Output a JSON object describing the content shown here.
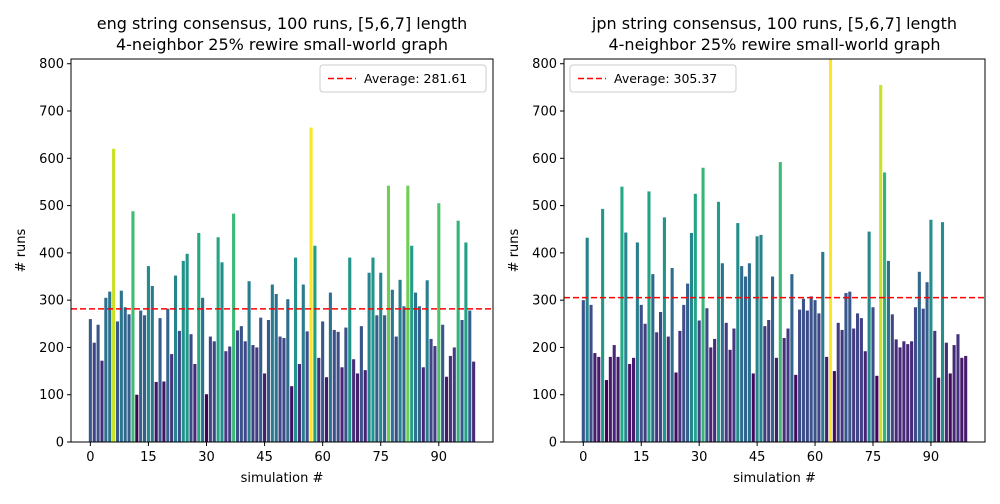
{
  "chart_data": [
    {
      "type": "bar",
      "title": "eng string consensus, 100 runs, [5,6,7] length",
      "subtitle": "4-neighbor 25% rewire small-world graph",
      "xlabel": "simulation #",
      "ylabel": "# runs",
      "xlim": [
        -5,
        104
      ],
      "ylim": [
        0,
        810
      ],
      "xticks": [
        0,
        15,
        30,
        45,
        60,
        75,
        90
      ],
      "yticks": [
        0,
        100,
        200,
        300,
        400,
        500,
        600,
        700,
        800
      ],
      "average": {
        "label": "Average: 281.61",
        "value": 281.61,
        "color": "#ff0000"
      },
      "legend_position": "upper-right",
      "color_scale": {
        "name": "viridis",
        "min": 100,
        "max": 665
      },
      "x": [
        0,
        1,
        2,
        3,
        4,
        5,
        6,
        7,
        8,
        9,
        10,
        11,
        12,
        13,
        14,
        15,
        16,
        17,
        18,
        19,
        20,
        21,
        22,
        23,
        24,
        25,
        26,
        27,
        28,
        29,
        30,
        31,
        32,
        33,
        34,
        35,
        36,
        37,
        38,
        39,
        40,
        41,
        42,
        43,
        44,
        45,
        46,
        47,
        48,
        49,
        50,
        51,
        52,
        53,
        54,
        55,
        56,
        57,
        58,
        59,
        60,
        61,
        62,
        63,
        64,
        65,
        66,
        67,
        68,
        69,
        70,
        71,
        72,
        73,
        74,
        75,
        76,
        77,
        78,
        79,
        80,
        81,
        82,
        83,
        84,
        85,
        86,
        87,
        88,
        89,
        90,
        91,
        92,
        93,
        94,
        95,
        96,
        97,
        98,
        99
      ],
      "values": [
        260,
        210,
        248,
        172,
        305,
        318,
        620,
        255,
        320,
        285,
        270,
        488,
        100,
        278,
        268,
        372,
        330,
        127,
        262,
        128,
        282,
        186,
        352,
        235,
        383,
        398,
        228,
        165,
        442,
        305,
        101,
        223,
        213,
        433,
        380,
        192,
        202,
        483,
        236,
        245,
        213,
        340,
        205,
        200,
        263,
        145,
        258,
        333,
        313,
        223,
        220,
        302,
        118,
        390,
        165,
        333,
        234,
        665,
        415,
        178,
        255,
        137,
        316,
        237,
        233,
        158,
        242,
        390,
        175,
        145,
        245,
        152,
        358,
        390,
        268,
        358,
        268,
        542,
        322,
        223,
        343,
        287,
        542,
        415,
        316,
        287,
        158,
        342,
        218,
        203,
        505,
        248,
        138,
        182,
        200,
        468,
        258,
        422,
        278,
        170
      ]
    },
    {
      "type": "bar",
      "title": "jpn string consensus, 100 runs, [5,6,7] length",
      "subtitle": "4-neighbor 25% rewire small-world graph",
      "xlabel": "simulation #",
      "ylabel": "# runs",
      "xlim": [
        -5,
        104
      ],
      "ylim": [
        0,
        810
      ],
      "xticks": [
        0,
        15,
        30,
        45,
        60,
        75,
        90
      ],
      "yticks": [
        0,
        100,
        200,
        300,
        400,
        500,
        600,
        700,
        800
      ],
      "average": {
        "label": "Average: 305.37",
        "value": 305.37,
        "color": "#ff0000"
      },
      "legend_position": "upper-left",
      "color_scale": {
        "name": "viridis",
        "min": 130,
        "max": 810
      },
      "x": [
        0,
        1,
        2,
        3,
        4,
        5,
        6,
        7,
        8,
        9,
        10,
        11,
        12,
        13,
        14,
        15,
        16,
        17,
        18,
        19,
        20,
        21,
        22,
        23,
        24,
        25,
        26,
        27,
        28,
        29,
        30,
        31,
        32,
        33,
        34,
        35,
        36,
        37,
        38,
        39,
        40,
        41,
        42,
        43,
        44,
        45,
        46,
        47,
        48,
        49,
        50,
        51,
        52,
        53,
        54,
        55,
        56,
        57,
        58,
        59,
        60,
        61,
        62,
        63,
        64,
        65,
        66,
        67,
        68,
        69,
        70,
        71,
        72,
        73,
        74,
        75,
        76,
        77,
        78,
        79,
        80,
        81,
        82,
        83,
        84,
        85,
        86,
        87,
        88,
        89,
        90,
        91,
        92,
        93,
        94,
        95,
        96,
        97,
        98,
        99
      ],
      "values": [
        300,
        432,
        290,
        188,
        180,
        493,
        131,
        180,
        205,
        180,
        540,
        443,
        165,
        178,
        422,
        290,
        250,
        530,
        355,
        232,
        275,
        475,
        223,
        368,
        147,
        235,
        290,
        335,
        442,
        525,
        257,
        580,
        283,
        200,
        218,
        508,
        378,
        252,
        195,
        240,
        463,
        372,
        350,
        378,
        145,
        435,
        438,
        245,
        258,
        350,
        178,
        592,
        220,
        240,
        355,
        142,
        280,
        303,
        278,
        308,
        300,
        272,
        402,
        180,
        810,
        150,
        252,
        237,
        315,
        318,
        240,
        272,
        262,
        192,
        445,
        285,
        140,
        755,
        570,
        383,
        270,
        217,
        200,
        213,
        207,
        213,
        285,
        360,
        282,
        338,
        470,
        235,
        136,
        465,
        210,
        145,
        205,
        228,
        178,
        182
      ]
    }
  ]
}
